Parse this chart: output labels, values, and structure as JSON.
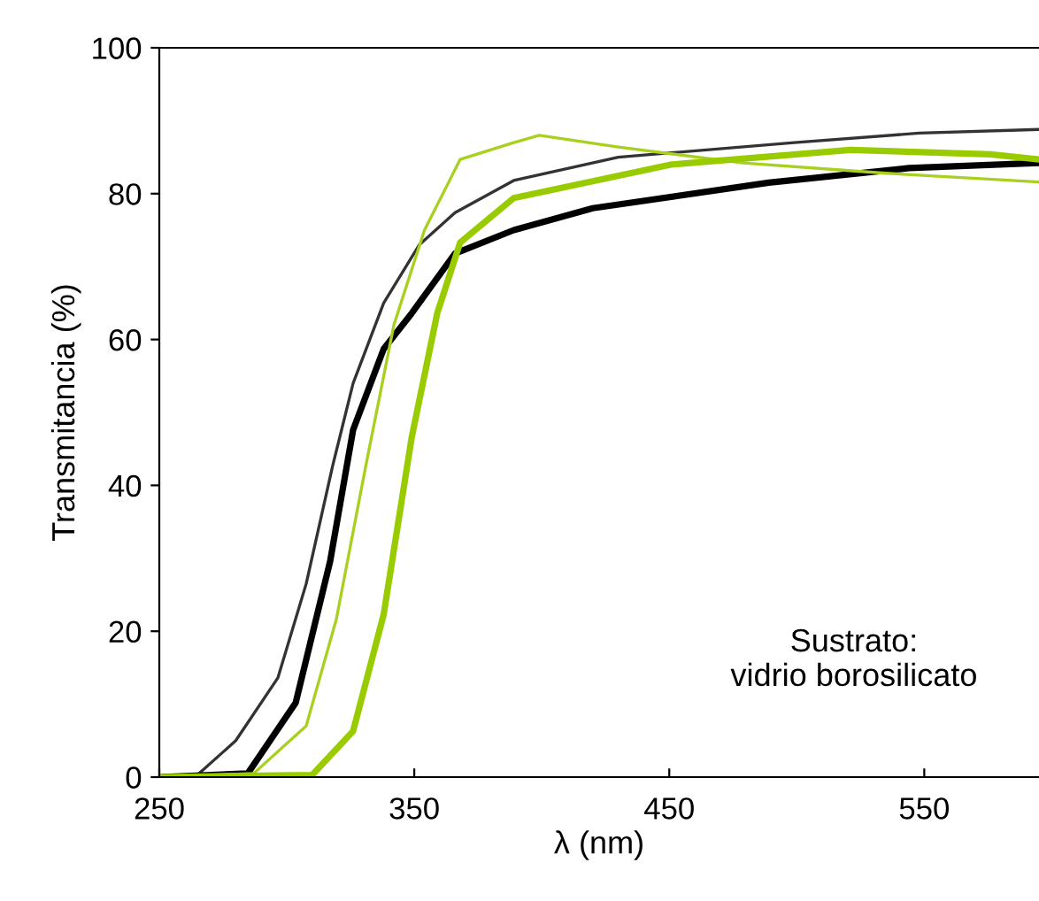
{
  "chart_data": {
    "type": "line",
    "xlabel": "λ (nm)",
    "ylabel": "Transmitancia (%)",
    "xlim": [
      250,
      595
    ],
    "ylim": [
      0,
      100
    ],
    "xticks": [
      250,
      350,
      450,
      550
    ],
    "yticks": [
      0,
      20,
      40,
      60,
      80,
      100
    ],
    "grid": false,
    "legend": false,
    "marker": "none",
    "annotations": [
      "Sustrato:\nvidrio borosilicato"
    ],
    "series": [
      {
        "color": "#333333",
        "x": [
          250,
          264,
          280,
          296.5,
          307.6,
          318,
          326,
          338,
          352,
          366,
          389,
          430,
          499,
          548,
          595
        ],
        "values": [
          0,
          0,
          5,
          13.6,
          26.5,
          42.7,
          54,
          65,
          73,
          77.4,
          81.8,
          85,
          87,
          88.3,
          88.8
        ]
      },
      {
        "color": "#000000",
        "x": [
          250,
          284.7,
          303.5,
          317,
          326,
          338,
          349,
          366,
          389,
          420,
          489,
          544,
          595
        ],
        "values": [
          0,
          0.5,
          10.2,
          29.6,
          47.6,
          58.7,
          63.6,
          71.8,
          75,
          78,
          81.5,
          83.5,
          84.2
        ]
      },
      {
        "color": "#a8d020",
        "x": [
          250,
          287,
          307.6,
          319.4,
          331,
          342,
          354,
          368,
          389,
          399,
          430,
          479,
          535,
          595
        ],
        "values": [
          0,
          0.5,
          7,
          21.6,
          42.7,
          62,
          75,
          84.7,
          87,
          88,
          86.4,
          84.2,
          82.8,
          81.6
        ]
      },
      {
        "color": "#99cc00",
        "x": [
          250,
          310,
          326,
          338,
          349,
          359,
          368,
          389,
          451,
          521,
          576,
          595
        ],
        "values": [
          0,
          0.3,
          6.3,
          22.3,
          46.6,
          63.6,
          73.3,
          79.4,
          84,
          86,
          85.4,
          84.7
        ]
      }
    ]
  }
}
